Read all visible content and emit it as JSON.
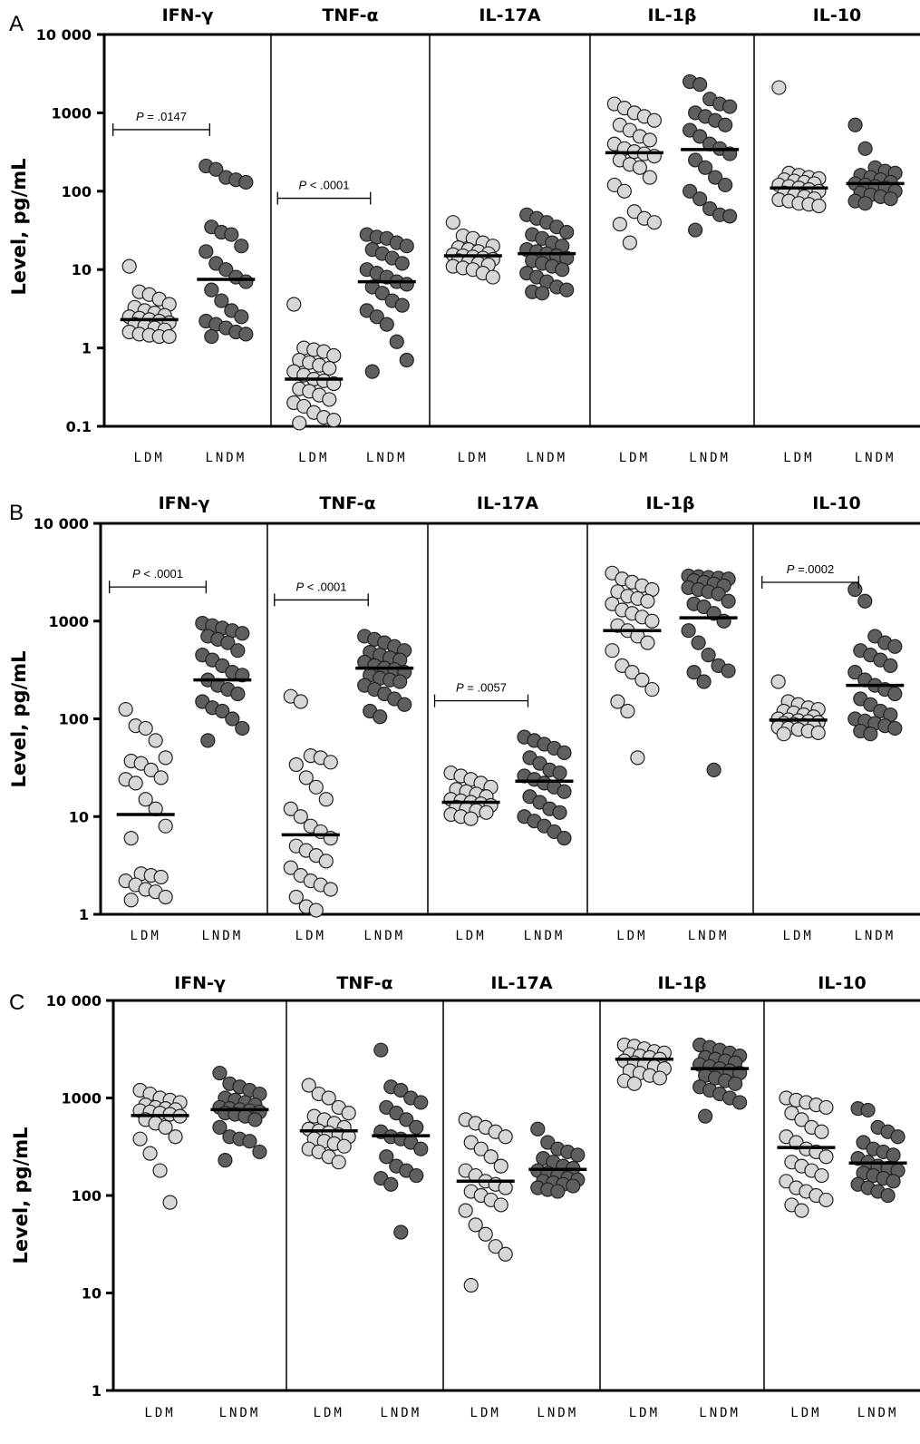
{
  "chart_data": [
    {
      "type": "scatter",
      "panel": "A",
      "ylabel": "Level, pg/mL",
      "yscale": "log",
      "ylim": [
        0.1,
        10000
      ],
      "yticks": [
        {
          "v": 10000,
          "label": "10 000"
        },
        {
          "v": 1000,
          "label": "1000"
        },
        {
          "v": 100,
          "label": "100"
        },
        {
          "v": 10,
          "label": "10"
        },
        {
          "v": 1,
          "label": "1"
        },
        {
          "v": 0.1,
          "label": "0.1"
        }
      ],
      "groups": [
        {
          "cytokine": "IFN-γ",
          "categories": [
            "LDM",
            "LNDM"
          ],
          "LDM": [
            11,
            5.2,
            4.8,
            4.2,
            3.6,
            3.3,
            3.0,
            2.8,
            2.6,
            2.5,
            2.4,
            2.3,
            2.2,
            2.1,
            2.0,
            1.9,
            1.8,
            1.7,
            1.6,
            1.5,
            1.45,
            1.4,
            1.4
          ],
          "LDM_median": 2.3,
          "LNDM": [
            210,
            190,
            150,
            140,
            130,
            35,
            30,
            28,
            20,
            17,
            12,
            10,
            8,
            7,
            5.5,
            4,
            3,
            2.5,
            2.2,
            2.0,
            1.8,
            1.6,
            1.5,
            1.4
          ],
          "LNDM_median": 7.5,
          "pvalue": "= .0147"
        },
        {
          "cytokine": "TNF-α",
          "categories": [
            "LDM",
            "LNDM"
          ],
          "LDM": [
            3.6,
            1.0,
            0.95,
            0.9,
            0.8,
            0.7,
            0.65,
            0.6,
            0.55,
            0.5,
            0.45,
            0.4,
            0.38,
            0.35,
            0.3,
            0.28,
            0.25,
            0.22,
            0.2,
            0.18,
            0.15,
            0.13,
            0.12,
            0.11
          ],
          "LDM_median": 0.4,
          "LNDM": [
            28,
            26,
            25,
            22,
            20,
            18,
            16,
            14,
            12,
            10,
            9,
            8,
            7,
            6.5,
            6,
            5,
            4,
            3.5,
            3,
            2.5,
            2,
            1.2,
            0.7,
            0.5
          ],
          "LNDM_median": 7,
          "pvalue": "< .0001"
        },
        {
          "cytokine": "IL-17A",
          "categories": [
            "LDM",
            "LNDM"
          ],
          "LDM": [
            40,
            27,
            25,
            22,
            20,
            19,
            18,
            17,
            16,
            15.5,
            15,
            14.5,
            14,
            13.5,
            13,
            12.5,
            12,
            11.5,
            11,
            10.5,
            10,
            9,
            8
          ],
          "LDM_median": 15,
          "LNDM": [
            50,
            45,
            40,
            35,
            30,
            28,
            25,
            22,
            20,
            18,
            17,
            16,
            15,
            14,
            13,
            12,
            11,
            10,
            9,
            8,
            7,
            6,
            5.5,
            5.2,
            5
          ],
          "LNDM_median": 16,
          "pvalue": ""
        },
        {
          "cytokine": "IL-1β",
          "categories": [
            "LDM",
            "LNDM"
          ],
          "LDM": [
            1300,
            1150,
            1000,
            900,
            800,
            700,
            600,
            500,
            450,
            400,
            350,
            320,
            300,
            280,
            250,
            220,
            200,
            150,
            120,
            100,
            55,
            45,
            40,
            38,
            22
          ],
          "LDM_median": 310,
          "LNDM": [
            2500,
            2300,
            1500,
            1300,
            1200,
            1000,
            900,
            800,
            700,
            600,
            500,
            400,
            350,
            300,
            250,
            200,
            150,
            120,
            100,
            80,
            60,
            50,
            48,
            32
          ],
          "LNDM_median": 340,
          "pvalue": ""
        },
        {
          "cytokine": "IL-10",
          "categories": [
            "LDM",
            "LNDM"
          ],
          "LDM": [
            2100,
            170,
            160,
            150,
            145,
            140,
            135,
            130,
            125,
            120,
            115,
            110,
            105,
            100,
            95,
            90,
            85,
            80,
            78,
            75,
            70,
            68,
            65
          ],
          "LDM_median": 110,
          "LNDM": [
            700,
            350,
            200,
            180,
            170,
            160,
            150,
            140,
            130,
            125,
            120,
            115,
            110,
            100,
            95,
            90,
            85,
            80,
            75,
            70
          ],
          "LNDM_median": 125,
          "pvalue": ""
        }
      ]
    },
    {
      "type": "scatter",
      "panel": "B",
      "ylabel": "Level, pg/mL",
      "yscale": "log",
      "ylim": [
        1,
        10000
      ],
      "yticks": [
        {
          "v": 10000,
          "label": "10 000"
        },
        {
          "v": 1000,
          "label": "1000"
        },
        {
          "v": 100,
          "label": "100"
        },
        {
          "v": 10,
          "label": "10"
        },
        {
          "v": 1,
          "label": "1"
        }
      ],
      "groups": [
        {
          "cytokine": "IFN-γ",
          "categories": [
            "LDM",
            "LNDM"
          ],
          "LDM": [
            125,
            85,
            80,
            60,
            40,
            37,
            35,
            30,
            25,
            24,
            22,
            15,
            12,
            8,
            6,
            2.6,
            2.5,
            2.4,
            2.2,
            2.0,
            1.8,
            1.7,
            1.5,
            1.4
          ],
          "LDM_median": 10.5,
          "LNDM": [
            950,
            900,
            850,
            800,
            750,
            700,
            650,
            600,
            500,
            450,
            400,
            350,
            300,
            280,
            250,
            220,
            200,
            180,
            150,
            130,
            120,
            100,
            80,
            60
          ],
          "LNDM_median": 250,
          "pvalue": "< .0001"
        },
        {
          "cytokine": "TNF-α",
          "categories": [
            "LDM",
            "LNDM"
          ],
          "LDM": [
            170,
            150,
            42,
            40,
            36,
            34,
            25,
            20,
            15,
            12,
            10,
            8,
            7,
            6,
            5,
            4.5,
            4,
            3.5,
            3,
            2.5,
            2.2,
            2,
            1.8,
            1.5,
            1.2,
            1.1
          ],
          "LDM_median": 6.5,
          "LNDM": [
            700,
            650,
            600,
            550,
            500,
            480,
            450,
            420,
            400,
            380,
            350,
            330,
            320,
            300,
            280,
            260,
            250,
            240,
            220,
            200,
            180,
            160,
            140,
            120,
            105
          ],
          "LNDM_median": 330,
          "pvalue": "< .0001"
        },
        {
          "cytokine": "IL-17A",
          "categories": [
            "LDM",
            "LNDM"
          ],
          "LDM": [
            28,
            26,
            24,
            22,
            20,
            19,
            18,
            17,
            16,
            15,
            14.5,
            14,
            13.5,
            13,
            12.5,
            12,
            11.5,
            11,
            10.5,
            10,
            9.5
          ],
          "LDM_median": 14,
          "LNDM": [
            65,
            60,
            55,
            50,
            45,
            40,
            35,
            30,
            28,
            26,
            24,
            22,
            20,
            18,
            16,
            14,
            12,
            11,
            10,
            9,
            8,
            7,
            6
          ],
          "LNDM_median": 23,
          "pvalue": "= .0057"
        },
        {
          "cytokine": "IL-1β",
          "categories": [
            "LDM",
            "LNDM"
          ],
          "LDM": [
            3100,
            2700,
            2500,
            2300,
            2100,
            2000,
            1800,
            1700,
            1600,
            1500,
            1300,
            1200,
            1100,
            1000,
            900,
            800,
            700,
            600,
            500,
            350,
            300,
            250,
            200,
            150,
            120,
            40
          ],
          "LDM_median": 800,
          "LNDM": [
            2900,
            2850,
            2800,
            2750,
            2700,
            2600,
            2500,
            2400,
            2300,
            2200,
            2100,
            2000,
            1900,
            1600,
            1500,
            1400,
            1200,
            1000,
            800,
            600,
            450,
            350,
            310,
            300,
            240,
            30
          ],
          "LNDM_median": 1080,
          "pvalue": ""
        },
        {
          "cytokine": "IL-10",
          "categories": [
            "LDM",
            "LNDM"
          ],
          "LDM": [
            240,
            150,
            140,
            130,
            125,
            120,
            115,
            110,
            105,
            100,
            98,
            96,
            94,
            92,
            90,
            88,
            86,
            84,
            82,
            80,
            78,
            75,
            72,
            70
          ],
          "LDM_median": 97,
          "LNDM": [
            2100,
            1600,
            700,
            600,
            550,
            500,
            450,
            400,
            350,
            300,
            250,
            220,
            200,
            180,
            160,
            140,
            120,
            110,
            100,
            95,
            90,
            85,
            80,
            75,
            70
          ],
          "LNDM_median": 220,
          "pvalue": "=.0002"
        }
      ]
    },
    {
      "type": "scatter",
      "panel": "C",
      "ylabel": "Level, pg/mL",
      "yscale": "log",
      "ylim": [
        1,
        10000
      ],
      "yticks": [
        {
          "v": 10000,
          "label": "10 000"
        },
        {
          "v": 1000,
          "label": "1000"
        },
        {
          "v": 100,
          "label": "100"
        },
        {
          "v": 10,
          "label": "10"
        },
        {
          "v": 1,
          "label": "1"
        }
      ],
      "groups": [
        {
          "cytokine": "IFN-γ",
          "categories": [
            "LDM",
            "LNDM"
          ],
          "LDM": [
            1200,
            1100,
            1000,
            950,
            900,
            850,
            800,
            780,
            760,
            740,
            720,
            700,
            680,
            650,
            600,
            550,
            500,
            400,
            380,
            270,
            180,
            85
          ],
          "LDM_median": 660,
          "LNDM": [
            1800,
            1400,
            1300,
            1200,
            1100,
            1000,
            950,
            900,
            850,
            800,
            780,
            760,
            740,
            720,
            700,
            680,
            650,
            600,
            500,
            400,
            380,
            360,
            280,
            230
          ],
          "LNDM_median": 760,
          "pvalue": ""
        },
        {
          "cytokine": "TNF-α",
          "categories": [
            "LDM",
            "LNDM"
          ],
          "LDM": [
            1350,
            1100,
            1000,
            800,
            700,
            650,
            600,
            550,
            500,
            480,
            460,
            440,
            420,
            400,
            380,
            360,
            340,
            320,
            300,
            280,
            250,
            220
          ],
          "LDM_median": 460,
          "LNDM": [
            3100,
            1300,
            1200,
            1000,
            900,
            800,
            700,
            600,
            500,
            450,
            400,
            380,
            350,
            300,
            250,
            200,
            180,
            160,
            150,
            130,
            42
          ],
          "LNDM_median": 410,
          "pvalue": ""
        },
        {
          "cytokine": "IL-17A",
          "categories": [
            "LDM",
            "LNDM"
          ],
          "LDM": [
            600,
            550,
            500,
            450,
            400,
            350,
            300,
            250,
            200,
            180,
            160,
            140,
            130,
            120,
            110,
            100,
            90,
            80,
            70,
            50,
            40,
            30,
            25,
            12
          ],
          "LDM_median": 140,
          "LNDM": [
            480,
            350,
            300,
            280,
            260,
            240,
            220,
            200,
            190,
            180,
            170,
            160,
            150,
            145,
            140,
            135,
            130,
            125,
            120,
            115,
            110
          ],
          "LNDM_median": 185,
          "pvalue": ""
        },
        {
          "cytokine": "IL-1β",
          "categories": [
            "LDM",
            "LNDM"
          ],
          "LDM": [
            3500,
            3400,
            3200,
            3000,
            2900,
            2800,
            2700,
            2600,
            2500,
            2400,
            2300,
            2200,
            2100,
            2000,
            1900,
            1800,
            1700,
            1600,
            1500,
            1400
          ],
          "LDM_median": 2500,
          "LNDM": [
            3500,
            3300,
            3100,
            2900,
            2700,
            2600,
            2500,
            2400,
            2300,
            2200,
            2100,
            2000,
            1900,
            1800,
            1700,
            1600,
            1500,
            1400,
            1300,
            1200,
            1100,
            1000,
            900,
            650
          ],
          "LNDM_median": 2000,
          "pvalue": ""
        },
        {
          "cytokine": "IL-10",
          "categories": [
            "LDM",
            "LNDM"
          ],
          "LDM": [
            1000,
            950,
            900,
            850,
            800,
            700,
            600,
            500,
            450,
            400,
            350,
            300,
            280,
            250,
            220,
            200,
            180,
            160,
            140,
            120,
            110,
            100,
            90,
            80,
            70
          ],
          "LDM_median": 310,
          "LNDM": [
            780,
            750,
            500,
            450,
            400,
            350,
            300,
            280,
            260,
            240,
            220,
            200,
            190,
            180,
            170,
            160,
            150,
            140,
            130,
            120,
            110,
            100
          ],
          "LNDM_median": 215,
          "pvalue": ""
        }
      ]
    }
  ]
}
